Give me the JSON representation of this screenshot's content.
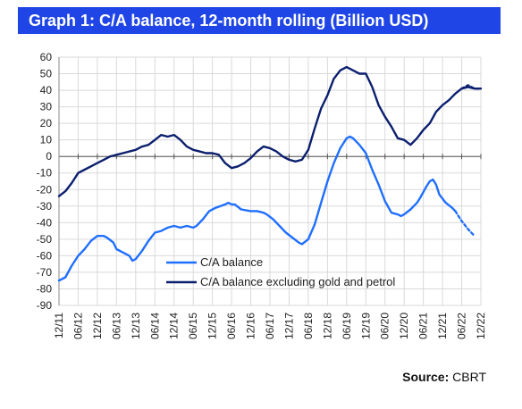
{
  "title": "Graph 1: C/A balance, 12-month rolling (Billion USD)",
  "source": {
    "label": "Source:",
    "value": "CBRT"
  },
  "chart_data": {
    "type": "line",
    "ylim": [
      -90,
      60
    ],
    "yticks": [
      60,
      50,
      40,
      30,
      20,
      10,
      0,
      -10,
      -20,
      -30,
      -40,
      -50,
      -60,
      -70,
      -80,
      -90
    ],
    "xticks": [
      "12/11",
      "06/12",
      "12/12",
      "06/13",
      "12/13",
      "06/14",
      "12/14",
      "06/15",
      "12/15",
      "06/16",
      "12/16",
      "06/17",
      "12/17",
      "06/18",
      "12/18",
      "06/19",
      "12/19",
      "06/20",
      "12/20",
      "06/21",
      "12/21",
      "06/22",
      "12/22"
    ],
    "grid": true,
    "legend_position": "bottom-left",
    "colors": {
      "ca": "#1f6fff",
      "ca_ex": "#0b1f6e",
      "title_bg": "#1f45e6"
    },
    "series": [
      {
        "name": "C/A balance",
        "color": "#1f6fff",
        "points": [
          [
            "12/11",
            -75
          ],
          [
            "02/12",
            -73
          ],
          [
            "04/12",
            -66
          ],
          [
            "06/12",
            -60
          ],
          [
            "08/12",
            -56
          ],
          [
            "10/12",
            -51
          ],
          [
            "12/12",
            -48
          ],
          [
            "02/13",
            -48
          ],
          [
            "03/13",
            -49
          ],
          [
            "05/13",
            -52
          ],
          [
            "06/13",
            -56
          ],
          [
            "08/13",
            -58
          ],
          [
            "10/13",
            -60
          ],
          [
            "11/13",
            -63
          ],
          [
            "12/13",
            -62
          ],
          [
            "02/14",
            -57
          ],
          [
            "04/14",
            -51
          ],
          [
            "06/14",
            -46
          ],
          [
            "08/14",
            -45
          ],
          [
            "10/14",
            -43
          ],
          [
            "12/14",
            -42
          ],
          [
            "02/15",
            -43
          ],
          [
            "04/15",
            -42
          ],
          [
            "06/15",
            -43
          ],
          [
            "07/15",
            -42
          ],
          [
            "09/15",
            -38
          ],
          [
            "11/15",
            -33
          ],
          [
            "01/16",
            -31
          ],
          [
            "04/16",
            -29
          ],
          [
            "05/16",
            -28
          ],
          [
            "06/16",
            -29
          ],
          [
            "07/16",
            -29
          ],
          [
            "09/16",
            -32
          ],
          [
            "12/16",
            -33
          ],
          [
            "02/17",
            -33
          ],
          [
            "04/17",
            -34
          ],
          [
            "05/17",
            -35
          ],
          [
            "07/17",
            -38
          ],
          [
            "09/17",
            -42
          ],
          [
            "11/17",
            -46
          ],
          [
            "01/18",
            -49
          ],
          [
            "03/18",
            -52
          ],
          [
            "04/18",
            -53
          ],
          [
            "06/18",
            -50
          ],
          [
            "08/18",
            -41
          ],
          [
            "10/18",
            -28
          ],
          [
            "12/18",
            -15
          ],
          [
            "02/19",
            -4
          ],
          [
            "04/19",
            5
          ],
          [
            "06/19",
            11
          ],
          [
            "07/19",
            12
          ],
          [
            "08/19",
            11
          ],
          [
            "10/19",
            7
          ],
          [
            "12/19",
            2
          ],
          [
            "02/20",
            -8
          ],
          [
            "04/20",
            -17
          ],
          [
            "06/20",
            -27
          ],
          [
            "08/20",
            -34
          ],
          [
            "10/20",
            -35
          ],
          [
            "11/20",
            -36
          ],
          [
            "12/20",
            -35
          ],
          [
            "02/21",
            -32
          ],
          [
            "04/21",
            -28
          ],
          [
            "05/21",
            -25
          ],
          [
            "07/21",
            -18
          ],
          [
            "08/21",
            -15
          ],
          [
            "09/21",
            -14
          ],
          [
            "10/21",
            -17
          ],
          [
            "11/21",
            -23
          ],
          [
            "01/22",
            -28
          ],
          [
            "03/22",
            -31
          ],
          [
            "04/22",
            -33
          ]
        ],
        "projection": [
          [
            "04/22",
            -33
          ],
          [
            "06/22",
            -39
          ],
          [
            "08/22",
            -44
          ],
          [
            "10/22",
            -48
          ]
        ]
      },
      {
        "name": "C/A balance excluding gold and petrol",
        "color": "#0b1f6e",
        "points": [
          [
            "12/11",
            -24
          ],
          [
            "02/12",
            -21
          ],
          [
            "04/12",
            -16
          ],
          [
            "06/12",
            -10
          ],
          [
            "08/12",
            -8
          ],
          [
            "10/12",
            -6
          ],
          [
            "12/12",
            -4
          ],
          [
            "02/13",
            -2
          ],
          [
            "04/13",
            0
          ],
          [
            "06/13",
            1
          ],
          [
            "08/13",
            2
          ],
          [
            "10/13",
            3
          ],
          [
            "12/13",
            4
          ],
          [
            "02/14",
            6
          ],
          [
            "04/14",
            7
          ],
          [
            "06/14",
            10
          ],
          [
            "08/14",
            13
          ],
          [
            "10/14",
            12
          ],
          [
            "12/14",
            13
          ],
          [
            "02/15",
            10
          ],
          [
            "04/15",
            6
          ],
          [
            "06/15",
            4
          ],
          [
            "08/15",
            3
          ],
          [
            "10/15",
            2
          ],
          [
            "12/15",
            2
          ],
          [
            "02/16",
            1
          ],
          [
            "04/16",
            -4
          ],
          [
            "06/16",
            -7
          ],
          [
            "08/16",
            -6
          ],
          [
            "10/16",
            -4
          ],
          [
            "12/16",
            -1
          ],
          [
            "02/17",
            3
          ],
          [
            "04/17",
            6
          ],
          [
            "06/17",
            5
          ],
          [
            "08/17",
            3
          ],
          [
            "10/17",
            0
          ],
          [
            "12/17",
            -2
          ],
          [
            "02/18",
            -3
          ],
          [
            "04/18",
            -2
          ],
          [
            "06/18",
            4
          ],
          [
            "08/18",
            17
          ],
          [
            "10/18",
            29
          ],
          [
            "12/18",
            37
          ],
          [
            "02/19",
            47
          ],
          [
            "04/19",
            52
          ],
          [
            "06/19",
            54
          ],
          [
            "08/19",
            52
          ],
          [
            "10/19",
            50
          ],
          [
            "12/19",
            50
          ],
          [
            "02/20",
            42
          ],
          [
            "04/20",
            31
          ],
          [
            "06/20",
            24
          ],
          [
            "08/20",
            18
          ],
          [
            "10/20",
            11
          ],
          [
            "12/20",
            10
          ],
          [
            "02/21",
            7
          ],
          [
            "04/21",
            11
          ],
          [
            "06/21",
            16
          ],
          [
            "08/21",
            20
          ],
          [
            "10/21",
            27
          ],
          [
            "12/21",
            31
          ],
          [
            "02/22",
            34
          ],
          [
            "04/22",
            38
          ],
          [
            "06/22",
            41
          ],
          [
            "08/22",
            42
          ],
          [
            "10/22",
            41
          ],
          [
            "12/22",
            41
          ]
        ],
        "projection": [
          [
            "06/22",
            41
          ],
          [
            "08/22",
            43
          ],
          [
            "10/22",
            41
          ],
          [
            "12/22",
            41
          ]
        ]
      }
    ]
  }
}
